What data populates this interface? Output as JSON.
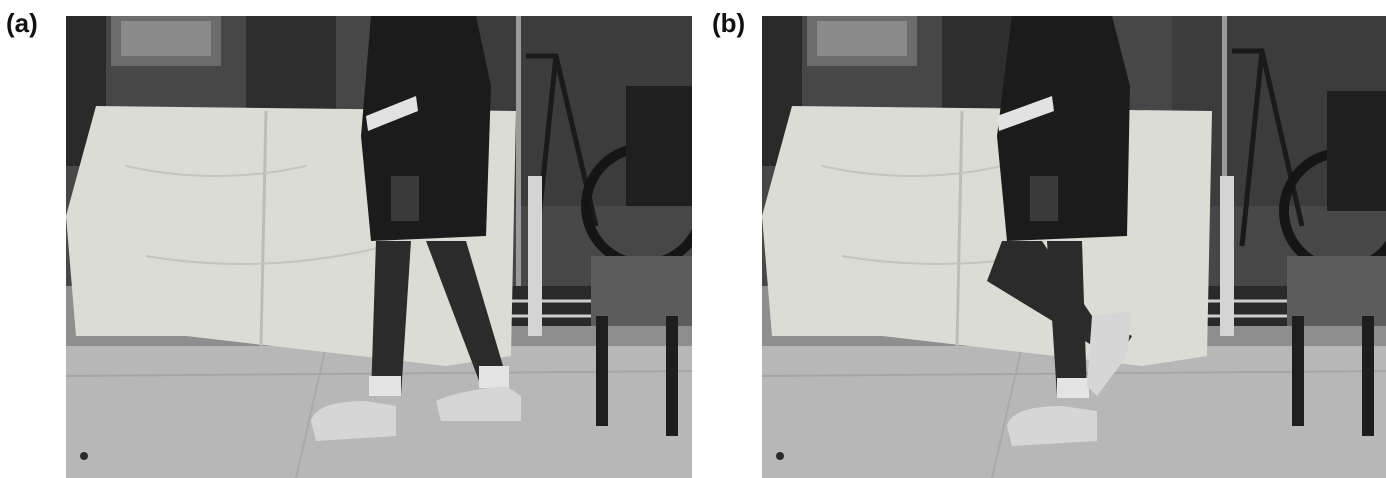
{
  "figure": {
    "panels": [
      {
        "label": "(a)",
        "scene": "walking-stance-phase"
      },
      {
        "label": "(b)",
        "scene": "walking-swing-phase"
      }
    ],
    "colors": {
      "floor": "#b9b9b9",
      "back_wall": "#4a4a4a",
      "sheet": "#d9d9d4",
      "clothing": "#1b1b1b",
      "legs": "#2c2c2c",
      "shoe": "#d8d8d8",
      "chair_seat": "#5a5a5a",
      "chair_frame": "#1e1e1e"
    }
  }
}
